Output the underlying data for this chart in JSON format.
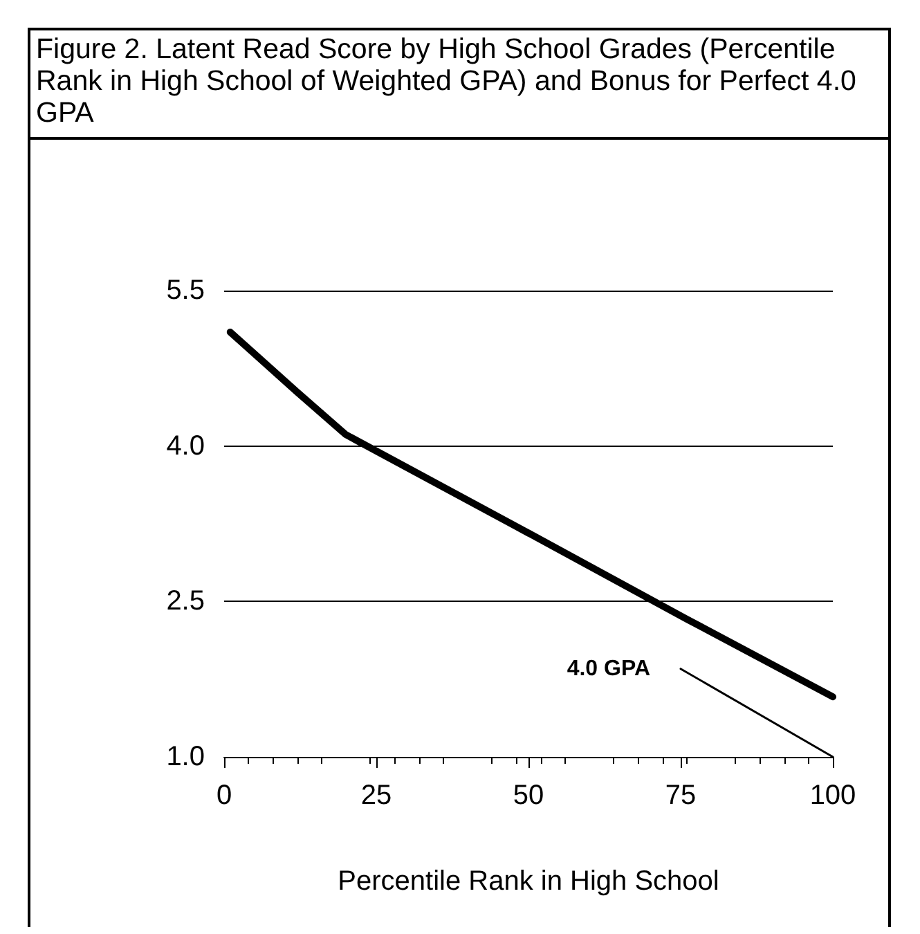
{
  "chart_data": {
    "type": "line",
    "title": "Figure 2. Latent Read Score by High School Grades (Percentile Rank in High School of Weighted GPA) and Bonus for Perfect 4.0 GPA",
    "xlabel": "Percentile Rank in High School",
    "series": [
      {
        "color": "#000000",
        "x": [
          1,
          12,
          20,
          50,
          76,
          100
        ],
        "values": [
          5.1,
          4.52,
          4.11,
          3.16,
          2.33,
          1.58
        ]
      },
      {
        "color": "#000000",
        "x": [
          75,
          100
        ],
        "values": [
          1.85,
          1.0
        ]
      }
    ],
    "annotations": [
      "4.0 GPA"
    ],
    "xlim": [
      0,
      100
    ],
    "xticks": [
      0,
      25,
      50,
      75,
      100
    ],
    "ylim": [
      1.0,
      5.5
    ],
    "yticks": [
      {
        "value": 1,
        "label": "1.0"
      },
      {
        "value": 2.5,
        "label": "2.5"
      },
      {
        "value": 4,
        "label": "4.0"
      },
      {
        "value": 5.5,
        "label": "5.5"
      }
    ],
    "grid": "y",
    "marker": "none",
    "line_style": "solid"
  }
}
